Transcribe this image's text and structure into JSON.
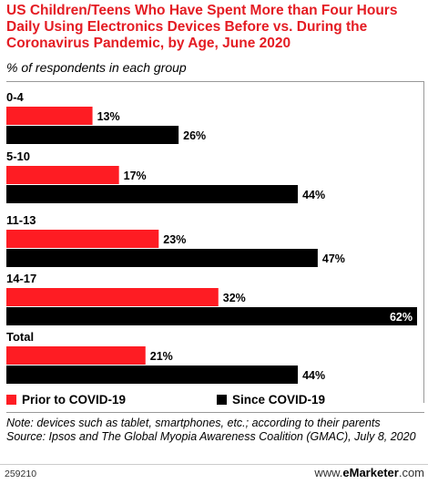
{
  "title": "US Children/Teens Who Have Spent More than Four Hours Daily Using Electronics Devices Before vs. During the Coronavirus Pandemic, by Age, June 2020",
  "subtitle": "% of respondents in each group",
  "legend": {
    "prior": "Prior to COVID-19",
    "since": "Since COVID-19"
  },
  "note": "Note: devices such as tablet, smartphones, etc.; according to their parents",
  "source": "Source: Ipsos and The Global Myopia Awareness Coalition (GMAC), July 8, 2020",
  "chart_id": "259210",
  "brand": {
    "prefix": "www.",
    "name": "eMarketer",
    "suffix": ".com"
  },
  "colors": {
    "prior": "#fe1c23",
    "since": "#000000"
  },
  "chart_data": {
    "type": "bar",
    "orientation": "horizontal",
    "categories": [
      "0-4",
      "5-10",
      "11-13",
      "14-17",
      "Total"
    ],
    "series": [
      {
        "name": "Prior to COVID-19",
        "values": [
          13,
          17,
          23,
          32,
          21
        ]
      },
      {
        "name": "Since COVID-19",
        "values": [
          26,
          44,
          47,
          62,
          44
        ]
      }
    ],
    "value_suffix": "%",
    "xlim": [
      0,
      62
    ],
    "grid": false,
    "legend_position": "bottom"
  }
}
